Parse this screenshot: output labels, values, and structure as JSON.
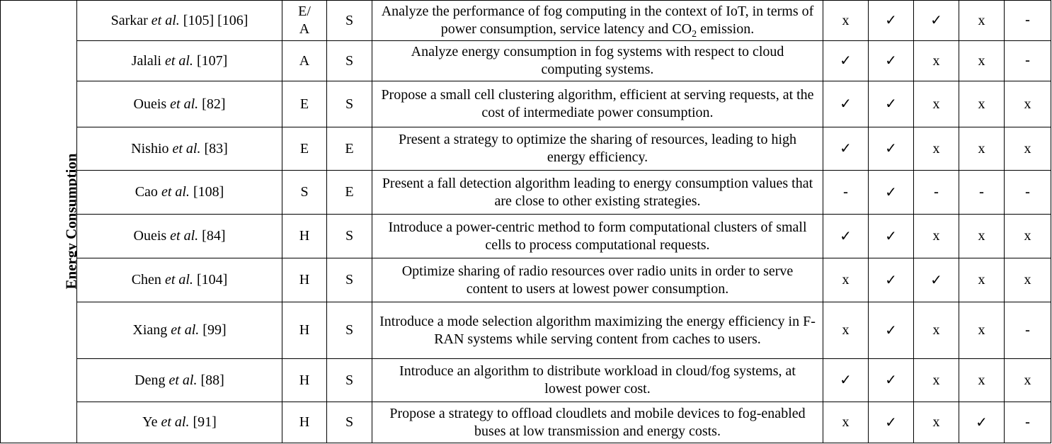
{
  "category": "Energy Consumption",
  "rows": [
    {
      "author": "Sarkar",
      "etal": "et al.",
      "ref": "[105] [106]",
      "type": "E/\nA",
      "eval": "S",
      "desc_pre": "Analyze the performance of fog computing in the context of IoT, in terms of power consumption, service latency and CO",
      "desc_sub": "2",
      "desc_post": " emission.",
      "marks": [
        "x",
        "✓",
        "✓",
        "x",
        "-"
      ]
    },
    {
      "author": "Jalali",
      "etal": "et al.",
      "ref": "[107]",
      "type": "A",
      "eval": "S",
      "desc": "Analyze energy consumption in fog systems with respect to cloud computing systems.",
      "marks": [
        "✓",
        "✓",
        "x",
        "x",
        "-"
      ]
    },
    {
      "author": "Oueis",
      "etal": "et al.",
      "ref": "[82]",
      "type": "E",
      "eval": "S",
      "desc": "Propose a small cell clustering algorithm, efficient at serving requests, at the cost of intermediate power consumption.",
      "marks": [
        "✓",
        "✓",
        "x",
        "x",
        "x"
      ]
    },
    {
      "author": "Nishio",
      "etal": "et al.",
      "ref": "[83]",
      "type": "E",
      "eval": "E",
      "desc": "Present a strategy to optimize the sharing of resources, leading to high energy efficiency.",
      "marks": [
        "✓",
        "✓",
        "x",
        "x",
        "x"
      ]
    },
    {
      "author": "Cao",
      "etal": "et al.",
      "ref": "[108]",
      "type": "S",
      "eval": "E",
      "desc": "Present a fall detection algorithm leading to energy consumption values that are close to other existing strategies.",
      "marks": [
        "-",
        "✓",
        "-",
        "-",
        "-"
      ]
    },
    {
      "author": "Oueis",
      "etal": "et al.",
      "ref": "[84]",
      "type": "H",
      "eval": "S",
      "desc": "Introduce a power-centric method to form computational clusters of small cells to process computational requests.",
      "marks": [
        "✓",
        "✓",
        "x",
        "x",
        "x"
      ]
    },
    {
      "author": "Chen",
      "etal": "et al.",
      "ref": "[104]",
      "type": "H",
      "eval": "S",
      "desc": "Optimize sharing of radio resources over radio units in order to serve content to users at lowest power consumption.",
      "marks": [
        "x",
        "✓",
        "✓",
        "x",
        "x"
      ]
    },
    {
      "author": "Xiang",
      "etal": "et al.",
      "ref": "[99]",
      "type": "H",
      "eval": "S",
      "desc": "Introduce a mode selection algorithm maximizing the energy efficiency in F-RAN systems while serving content from caches to users.",
      "marks": [
        "x",
        "✓",
        "x",
        "x",
        "-"
      ]
    },
    {
      "author": "Deng",
      "etal": "et al.",
      "ref": "[88]",
      "type": "H",
      "eval": "S",
      "desc": "Introduce an algorithm to distribute workload in cloud/fog systems, at lowest power cost.",
      "marks": [
        "✓",
        "✓",
        "x",
        "x",
        "x"
      ]
    },
    {
      "author": "Ye",
      "etal": "et al.",
      "ref": "[91]",
      "type": "H",
      "eval": "S",
      "desc": "Propose a strategy to offload cloudlets and mobile devices to fog-enabled buses at low transmission and energy costs.",
      "marks": [
        "x",
        "✓",
        "x",
        "✓",
        "-"
      ]
    }
  ]
}
